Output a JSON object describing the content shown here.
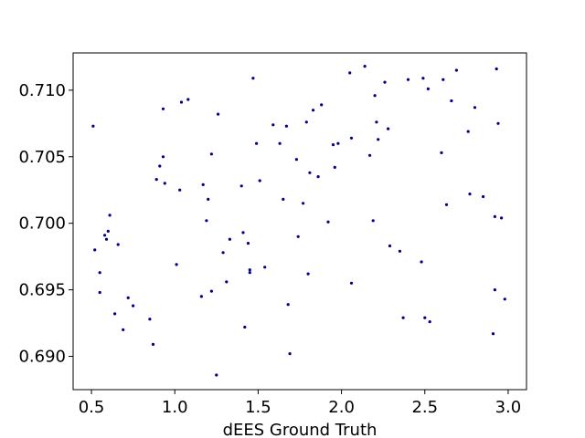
{
  "chart_data": {
    "type": "scatter",
    "title": "",
    "xlabel": "dEES Ground Truth",
    "ylabel": "",
    "xlim": [
      0.39,
      3.11
    ],
    "ylim": [
      0.6875,
      0.7128
    ],
    "xticks": [
      0.5,
      1.0,
      1.5,
      2.0,
      2.5,
      3.0
    ],
    "xtick_labels": [
      "0.5",
      "1.0",
      "1.5",
      "2.0",
      "2.5",
      "3.0"
    ],
    "yticks": [
      0.69,
      0.695,
      0.7,
      0.705,
      0.71
    ],
    "ytick_labels": [
      "0.690",
      "0.695",
      "0.700",
      "0.705",
      "0.710"
    ],
    "grid": false,
    "legend": "none",
    "marker_color": "#00008b",
    "points": [
      [
        0.51,
        0.7073
      ],
      [
        0.52,
        0.698
      ],
      [
        0.55,
        0.6963
      ],
      [
        0.55,
        0.6948
      ],
      [
        0.58,
        0.6991
      ],
      [
        0.59,
        0.6988
      ],
      [
        0.6,
        0.6994
      ],
      [
        0.61,
        0.7006
      ],
      [
        0.64,
        0.6932
      ],
      [
        0.66,
        0.6984
      ],
      [
        0.69,
        0.692
      ],
      [
        0.72,
        0.6944
      ],
      [
        0.75,
        0.6938
      ],
      [
        0.85,
        0.6928
      ],
      [
        0.87,
        0.6909
      ],
      [
        0.89,
        0.7033
      ],
      [
        0.91,
        0.7043
      ],
      [
        0.93,
        0.7086
      ],
      [
        0.93,
        0.705
      ],
      [
        0.94,
        0.703
      ],
      [
        1.01,
        0.6969
      ],
      [
        1.03,
        0.7025
      ],
      [
        1.04,
        0.7091
      ],
      [
        1.08,
        0.7093
      ],
      [
        1.16,
        0.6945
      ],
      [
        1.17,
        0.7029
      ],
      [
        1.19,
        0.7002
      ],
      [
        1.2,
        0.7018
      ],
      [
        1.22,
        0.6949
      ],
      [
        1.22,
        0.7052
      ],
      [
        1.25,
        0.6886
      ],
      [
        1.26,
        0.7082
      ],
      [
        1.29,
        0.6978
      ],
      [
        1.31,
        0.6956
      ],
      [
        1.33,
        0.6988
      ],
      [
        1.4,
        0.7028
      ],
      [
        1.41,
        0.6993
      ],
      [
        1.42,
        0.6922
      ],
      [
        1.44,
        0.6985
      ],
      [
        1.45,
        0.6965
      ],
      [
        1.45,
        0.6963
      ],
      [
        1.47,
        0.7109
      ],
      [
        1.49,
        0.706
      ],
      [
        1.51,
        0.7032
      ],
      [
        1.54,
        0.6967
      ],
      [
        1.59,
        0.7074
      ],
      [
        1.63,
        0.706
      ],
      [
        1.65,
        0.7018
      ],
      [
        1.67,
        0.7073
      ],
      [
        1.68,
        0.6939
      ],
      [
        1.69,
        0.6902
      ],
      [
        1.73,
        0.7048
      ],
      [
        1.74,
        0.699
      ],
      [
        1.77,
        0.7015
      ],
      [
        1.79,
        0.7076
      ],
      [
        1.8,
        0.6962
      ],
      [
        1.81,
        0.7038
      ],
      [
        1.83,
        0.7085
      ],
      [
        1.86,
        0.7035
      ],
      [
        1.88,
        0.7089
      ],
      [
        1.92,
        0.7001
      ],
      [
        1.95,
        0.7059
      ],
      [
        1.96,
        0.7042
      ],
      [
        1.98,
        0.706
      ],
      [
        2.05,
        0.7113
      ],
      [
        2.06,
        0.6955
      ],
      [
        2.06,
        0.7064
      ],
      [
        2.14,
        0.7118
      ],
      [
        2.17,
        0.7051
      ],
      [
        2.19,
        0.7002
      ],
      [
        2.2,
        0.7096
      ],
      [
        2.21,
        0.7076
      ],
      [
        2.22,
        0.7063
      ],
      [
        2.26,
        0.7106
      ],
      [
        2.28,
        0.7071
      ],
      [
        2.29,
        0.6983
      ],
      [
        2.35,
        0.6979
      ],
      [
        2.37,
        0.6929
      ],
      [
        2.4,
        0.7108
      ],
      [
        2.48,
        0.6971
      ],
      [
        2.49,
        0.7109
      ],
      [
        2.5,
        0.6929
      ],
      [
        2.52,
        0.7101
      ],
      [
        2.53,
        0.6926
      ],
      [
        2.6,
        0.7053
      ],
      [
        2.61,
        0.7108
      ],
      [
        2.63,
        0.7014
      ],
      [
        2.66,
        0.7092
      ],
      [
        2.69,
        0.7115
      ],
      [
        2.76,
        0.7069
      ],
      [
        2.77,
        0.7022
      ],
      [
        2.8,
        0.7087
      ],
      [
        2.85,
        0.702
      ],
      [
        2.91,
        0.6917
      ],
      [
        2.92,
        0.7005
      ],
      [
        2.92,
        0.695
      ],
      [
        2.93,
        0.7116
      ],
      [
        2.94,
        0.7075
      ],
      [
        2.96,
        0.7004
      ],
      [
        2.98,
        0.6943
      ]
    ]
  }
}
